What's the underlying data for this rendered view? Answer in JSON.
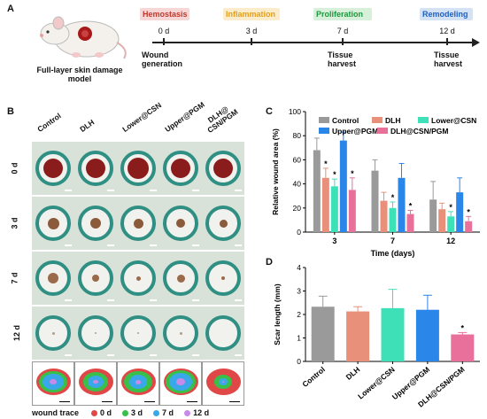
{
  "panel_labels": {
    "a": "A",
    "b": "B",
    "c": "C",
    "d": "D"
  },
  "panel_a": {
    "model_label": "Full-layer skin damage model",
    "stages": [
      {
        "name": "Hemostasis",
        "color": "#c0392b",
        "bg": "#f7d6d6"
      },
      {
        "name": "Inflammation",
        "color": "#e0a020",
        "bg": "#fbeccc"
      },
      {
        "name": "Proliferation",
        "color": "#1a9a3a",
        "bg": "#d6f0da"
      },
      {
        "name": "Remodeling",
        "color": "#1f5fbf",
        "bg": "#d4e2f6"
      }
    ],
    "days": [
      "0 d",
      "3 d",
      "7 d",
      "12 d"
    ],
    "events": [
      "Wound generation",
      "Tissue harvest",
      "Tissue harvest"
    ]
  },
  "panel_b": {
    "columns": [
      "Control",
      "DLH",
      "Lower@CSN",
      "Upper@PGM",
      "DLH@\nCSN/PGM"
    ],
    "rows": [
      "0 d",
      "3 d",
      "7 d",
      "12 d"
    ],
    "legend_title": "wound trace",
    "legend": [
      {
        "label": "0 d",
        "color": "#e04848"
      },
      {
        "label": "3 d",
        "color": "#38c048"
      },
      {
        "label": "7 d",
        "color": "#3aa8e8"
      },
      {
        "label": "12 d",
        "color": "#c88ae8"
      }
    ]
  },
  "chart_data": [
    {
      "type": "bar",
      "ylabel": "Relative wound area (%)",
      "xlabel": "Time (days)",
      "categories": [
        "3",
        "7",
        "12"
      ],
      "ylim": [
        0,
        100
      ],
      "yticks": [
        0,
        20,
        40,
        60,
        80,
        100
      ],
      "legend_position": "top",
      "series": [
        {
          "name": "Control",
          "color": "#9a9a9a",
          "values": [
            68,
            51,
            27
          ],
          "errors": [
            10,
            9,
            15
          ]
        },
        {
          "name": "DLH",
          "color": "#e8907a",
          "values": [
            45,
            26,
            19
          ],
          "errors": [
            8,
            7,
            5
          ]
        },
        {
          "name": "Lower@CSN",
          "color": "#3ee0b8",
          "values": [
            38,
            20,
            13
          ],
          "errors": [
            6,
            5,
            4
          ]
        },
        {
          "name": "Upper@PGM",
          "color": "#2a86e8",
          "values": [
            76,
            45,
            33
          ],
          "errors": [
            7,
            12,
            12
          ]
        },
        {
          "name": "DLH@CSN/PGM",
          "color": "#e8709a",
          "values": [
            35,
            15,
            9
          ],
          "errors": [
            10,
            3,
            4
          ]
        }
      ],
      "significance": [
        {
          "series": "DLH",
          "category": "3",
          "label": "*"
        },
        {
          "series": "Lower@CSN",
          "category": "3",
          "label": "*"
        },
        {
          "series": "DLH@CSN/PGM",
          "category": "3",
          "label": "*"
        },
        {
          "series": "Lower@CSN",
          "category": "7",
          "label": "*"
        },
        {
          "series": "DLH@CSN/PGM",
          "category": "7",
          "label": "*"
        },
        {
          "series": "Lower@CSN",
          "category": "12",
          "label": "*"
        },
        {
          "series": "DLH@CSN/PGM",
          "category": "12",
          "label": "*"
        }
      ]
    },
    {
      "type": "bar",
      "ylabel": "Scar length (mm)",
      "xlabel": "",
      "categories": [
        "Control",
        "DLH",
        "Lower@CSN",
        "Upper@PGM",
        "DLH@CSN/PGM"
      ],
      "values": [
        2.33,
        2.13,
        2.27,
        2.2,
        1.15
      ],
      "errors": [
        0.45,
        0.2,
        0.8,
        0.62,
        0.08
      ],
      "colors": [
        "#9a9a9a",
        "#e8907a",
        "#3ee0b8",
        "#2a86e8",
        "#e8709a"
      ],
      "ylim": [
        0,
        4
      ],
      "yticks": [
        0,
        1,
        2,
        3,
        4
      ],
      "significance": [
        {
          "category": "DLH@CSN/PGM",
          "label": "*"
        }
      ]
    }
  ]
}
